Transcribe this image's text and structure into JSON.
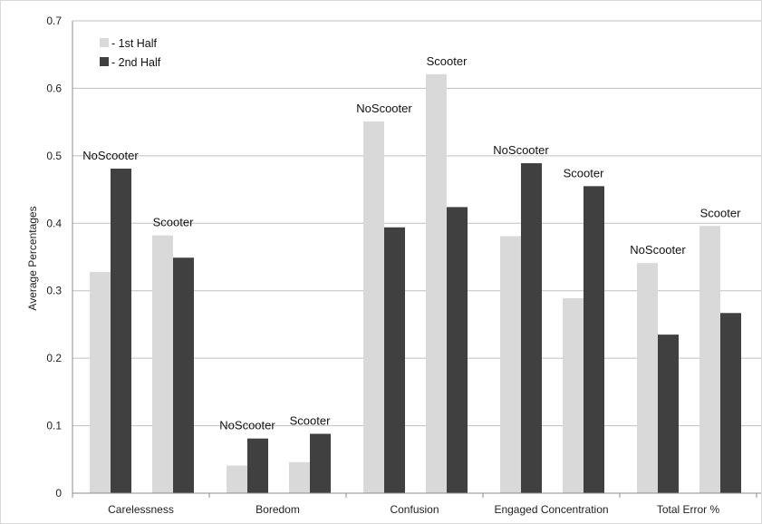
{
  "chart_data": {
    "type": "bar",
    "ylabel": "Average Percentages",
    "ylim": [
      0,
      0.7
    ],
    "yticks": [
      "0",
      "0.1",
      "0.2",
      "0.3",
      "0.4",
      "0.5",
      "0.6",
      "0.7"
    ],
    "grid": true,
    "legend_position": "top-left",
    "categories": [
      "Carelessness",
      "Boredom",
      "Confusion",
      "Engaged Concentration",
      "Total Error %"
    ],
    "group_labels": [
      "NoScooter",
      "Scooter"
    ],
    "series": [
      {
        "name": "- 1st Half",
        "color": "#d9d9d9"
      },
      {
        "name": "- 2nd Half",
        "color": "#404040"
      }
    ],
    "values": [
      {
        "category": "Carelessness",
        "NoScooter": {
          "1st Half": 0.328,
          "2nd Half": 0.481
        },
        "Scooter": {
          "1st Half": 0.382,
          "2nd Half": 0.349
        }
      },
      {
        "category": "Boredom",
        "NoScooter": {
          "1st Half": 0.041,
          "2nd Half": 0.081
        },
        "Scooter": {
          "1st Half": 0.046,
          "2nd Half": 0.088
        }
      },
      {
        "category": "Confusion",
        "NoScooter": {
          "1st Half": 0.551,
          "2nd Half": 0.394
        },
        "Scooter": {
          "1st Half": 0.621,
          "2nd Half": 0.424
        }
      },
      {
        "category": "Engaged Concentration",
        "NoScooter": {
          "1st Half": 0.381,
          "2nd Half": 0.489
        },
        "Scooter": {
          "1st Half": 0.289,
          "2nd Half": 0.455
        }
      },
      {
        "category": "Total Error %",
        "NoScooter": {
          "1st Half": 0.341,
          "2nd Half": 0.235
        },
        "Scooter": {
          "1st Half": 0.396,
          "2nd Half": 0.267
        }
      }
    ]
  }
}
